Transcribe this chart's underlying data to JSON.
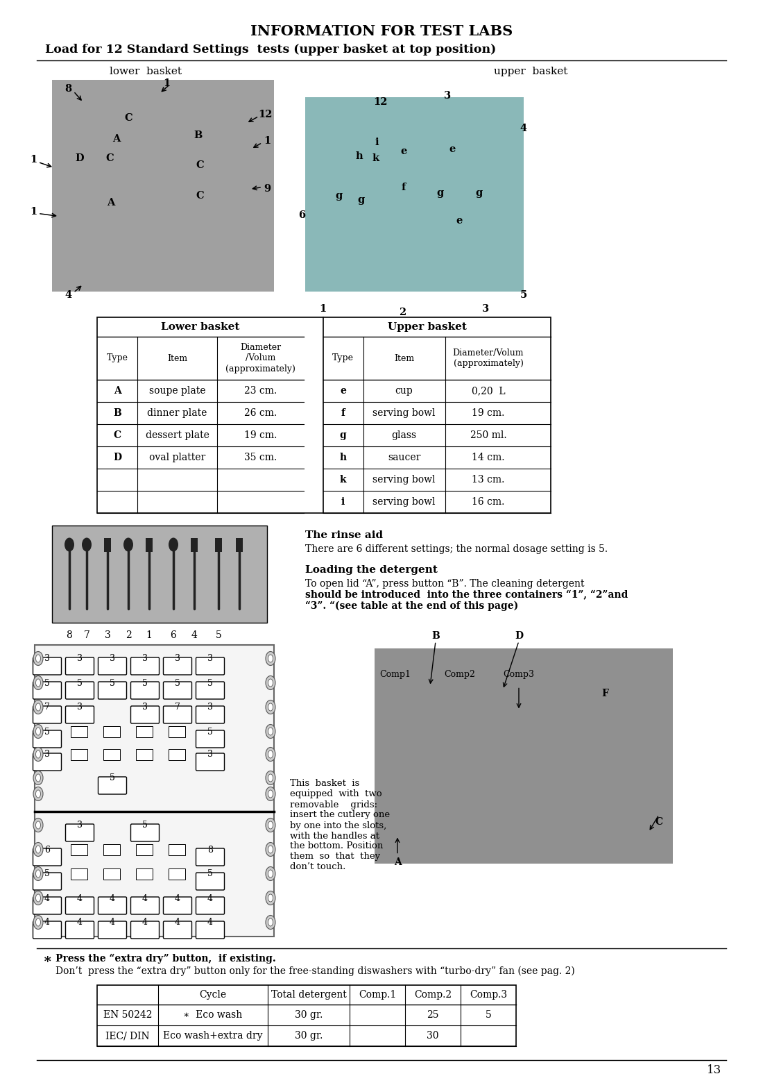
{
  "title": "INFORMATION FOR TEST LABS",
  "subtitle": "Load for 12 Standard Settings  tests (upper basket at top position)",
  "lower_basket_label": "lower  basket",
  "upper_basket_label": "upper  basket",
  "table_lower_basket": {
    "header": [
      "Type",
      "Item",
      "Diameter\n/Volum\n(approximately)"
    ],
    "rows": [
      [
        "A",
        "soupe plate",
        "23 cm."
      ],
      [
        "B",
        "dinner plate",
        "26 cm."
      ],
      [
        "C",
        "dessert plate",
        "19 cm."
      ],
      [
        "D",
        "oval platter",
        "35 cm."
      ],
      [
        "",
        "",
        ""
      ],
      [
        "",
        "",
        ""
      ]
    ]
  },
  "table_upper_basket": {
    "header": [
      "Type",
      "Item",
      "Diameter/Volum\n(approximately)"
    ],
    "rows": [
      [
        "e",
        "cup",
        "0,20  L"
      ],
      [
        "f",
        "serving bowl",
        "19 cm."
      ],
      [
        "g",
        "glass",
        "250 ml."
      ],
      [
        "h",
        "saucer",
        "14 cm."
      ],
      [
        "k",
        "serving bowl",
        "13 cm."
      ],
      [
        "i",
        "serving bowl",
        "16 cm."
      ]
    ]
  },
  "rinse_aid_title": "The rinse aid",
  "rinse_aid_text": "There are 6 different settings; the normal dosage setting is 5.",
  "detergent_title": "Loading the detergent",
  "detergent_line1": "To open lid “A”, press button “B”. The cleaning detergent",
  "detergent_line2": "should be introduced  into the three containers “1”, “2”and",
  "detergent_line3": "“3”. “(see table at the end of this page)",
  "cutlery_labels": [
    "8",
    "7",
    "3",
    "2",
    "1",
    "6",
    "4",
    "5"
  ],
  "basket_text_lines": [
    "This  basket  is",
    "equipped  with  two",
    "removable    grids:",
    "insert the cutlery one",
    "by one into the slots,",
    "with the handles at",
    "the bottom. Position",
    "them  so  that  they",
    "don’t touch."
  ],
  "note_star": "∗",
  "note_bold": "Press the “extra dry” button,  if existing.",
  "note_text": "Don’t  press the “extra dry” button only for the free-standing diswashers with “turbo-dry” fan (see pag. 2)",
  "bottom_table_headers": [
    "Cycle",
    "Total detergent",
    "Comp.1",
    "Comp.2",
    "Comp.3"
  ],
  "bottom_table_rows": [
    [
      "EN 50242",
      "∗  Eco wash",
      "30 gr.",
      "",
      "25",
      "5"
    ],
    [
      "IEC/ DIN",
      "Eco wash+extra dry",
      "30 gr.",
      "",
      "30",
      ""
    ]
  ],
  "page_number": "13",
  "bg_color": "#ffffff",
  "lower_img_color": "#a0a0a0",
  "upper_img_color": "#8ab8b8",
  "cutlery_img_color": "#b0b0b0",
  "comp_img_color": "#909090"
}
